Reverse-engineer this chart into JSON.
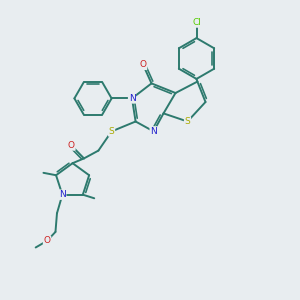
{
  "bg": "#e8edf0",
  "bc": "#2d7a6e",
  "Nc": "#2020cc",
  "Oc": "#cc2020",
  "Sc": "#aaaa00",
  "Clc": "#55cc00",
  "lw": 1.4,
  "lw_thin": 1.1,
  "fs": 6.5
}
